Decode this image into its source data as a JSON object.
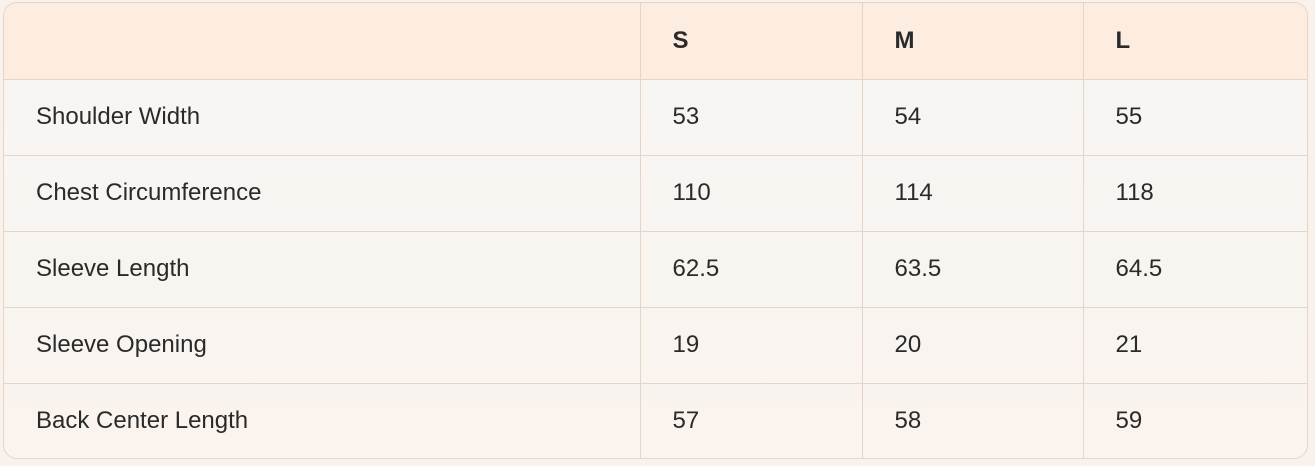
{
  "table": {
    "headers": [
      "",
      "S",
      "M",
      "L"
    ],
    "rows": [
      {
        "label": "Shoulder Width",
        "values": [
          "53",
          "54",
          "55"
        ]
      },
      {
        "label": "Chest Circumference",
        "values": [
          "110",
          "114",
          "118"
        ]
      },
      {
        "label": "Sleeve Length",
        "values": [
          "62.5",
          "63.5",
          "64.5"
        ]
      },
      {
        "label": "Sleeve Opening",
        "values": [
          "19",
          "20",
          "21"
        ]
      },
      {
        "label": "Back Center Length",
        "values": [
          "57",
          "58",
          "59"
        ]
      }
    ]
  }
}
